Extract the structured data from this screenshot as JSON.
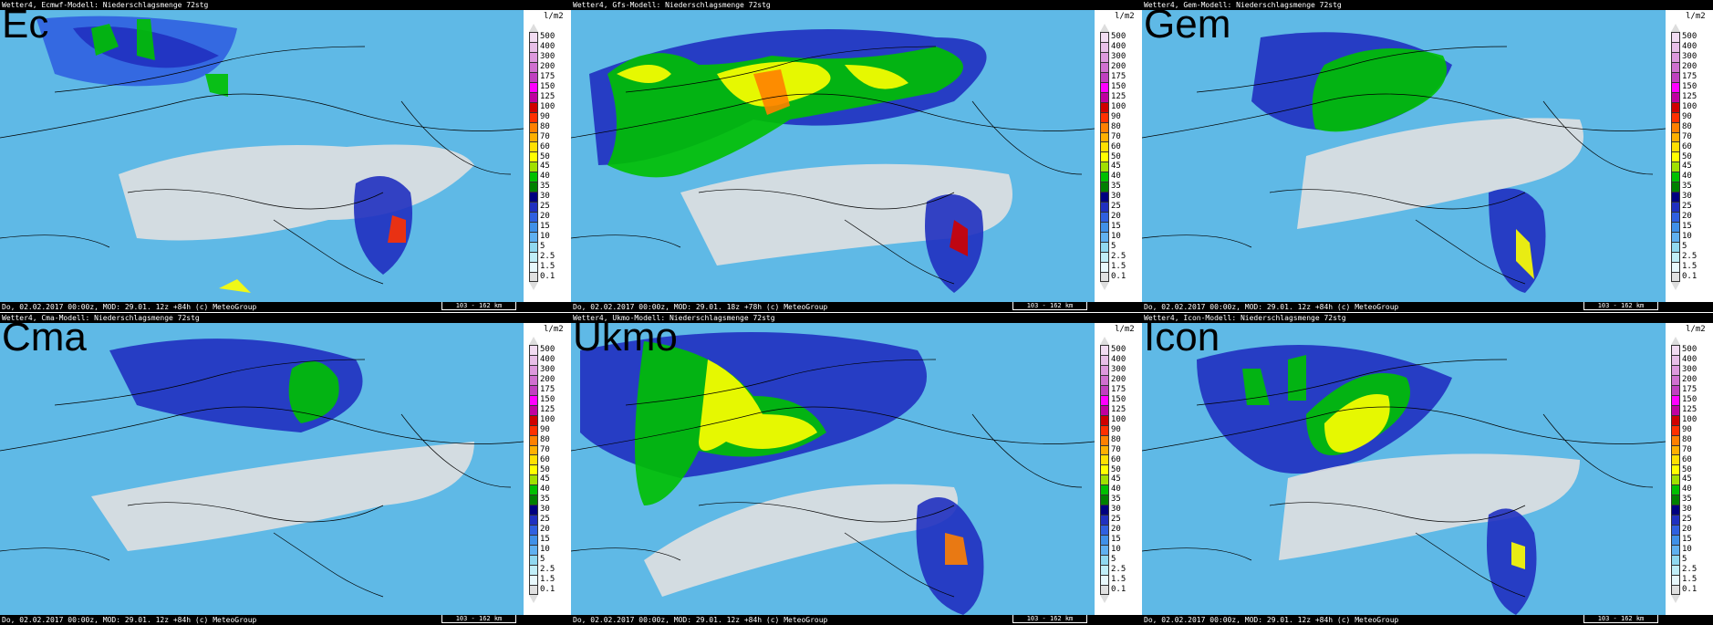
{
  "panels": [
    {
      "id": "ec",
      "title": "Ec",
      "header": "Wetter4, Ecmwf-Modell: Niederschlagsmenge 72stg",
      "footer": "Do, 02.02.2017 00:00z, MOD: 29.01. 12z +84h (c) MeteoGroup",
      "scale": "103 - 162 km"
    },
    {
      "id": "gfs",
      "title": "",
      "header": "Wetter4, Gfs-Modell: Niederschlagsmenge 72stg",
      "footer": "Do, 02.02.2017 00:00z, MOD: 29.01. 18z +78h (c) MeteoGroup",
      "scale": "103 - 162 km"
    },
    {
      "id": "gem",
      "title": "Gem",
      "header": "Wetter4, Gem-Modell: Niederschlagsmenge 72stg",
      "footer": "Do, 02.02.2017 00:00z, MOD: 29.01. 12z +84h (c) MeteoGroup",
      "scale": "103 - 162 km"
    },
    {
      "id": "cma",
      "title": "Cma",
      "header": "Wetter4, Cma-Modell: Niederschlagsmenge 72stg",
      "footer": "Do, 02.02.2017 00:00z, MOD: 29.01. 12z +84h (c) MeteoGroup",
      "scale": "103 - 162 km"
    },
    {
      "id": "ukmo",
      "title": "Ukmo",
      "header": "Wetter4, Ukmo-Modell: Niederschlagsmenge 72stg",
      "footer": "Do, 02.02.2017 00:00z, MOD: 29.01. 12z +84h (c) MeteoGroup",
      "scale": "103 - 162 km"
    },
    {
      "id": "icon",
      "title": "Icon",
      "header": "Wetter4, Icon-Modell: Niederschlagsmenge 72stg",
      "footer": "Do, 02.02.2017 00:00z, MOD: 29.01. 12z +84h (c) MeteoGroup",
      "scale": "103 - 162 km"
    }
  ],
  "legend": {
    "unit": "l/m2",
    "levels": [
      "500",
      "400",
      "300",
      "200",
      "175",
      "150",
      "125",
      "100",
      "90",
      "80",
      "70",
      "60",
      "50",
      "45",
      "40",
      "35",
      "30",
      "25",
      "20",
      "15",
      "10",
      "5",
      "2.5",
      "1.5",
      "0.1"
    ],
    "colors": [
      "#f2dcf2",
      "#e8bfe8",
      "#dd99dd",
      "#d070d0",
      "#c040c0",
      "#ff00ff",
      "#c000a0",
      "#d00000",
      "#ff3000",
      "#ff8000",
      "#ffb000",
      "#ffe000",
      "#ffff00",
      "#a0e000",
      "#00c000",
      "#008000",
      "#000080",
      "#2030c0",
      "#3060e0",
      "#4090e8",
      "#60b0f0",
      "#90d8f0",
      "#c0eef8",
      "#e8f8fc",
      "#e0e0e0"
    ]
  }
}
